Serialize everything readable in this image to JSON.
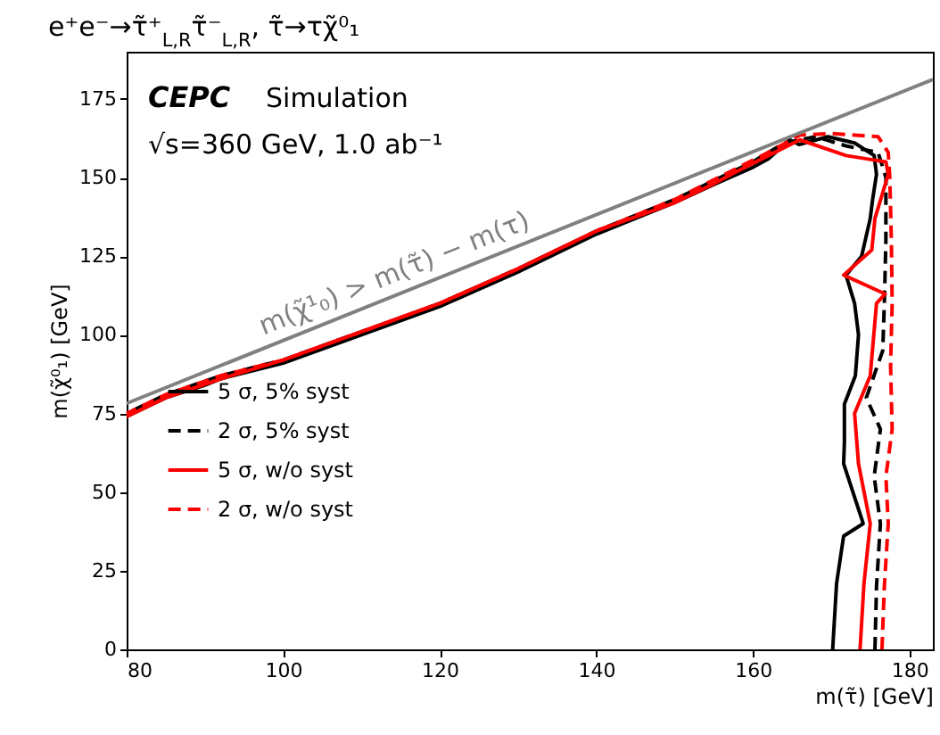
{
  "chart_data": {
    "type": "line",
    "title": "e⁺e⁻→τ̃⁺$_{L,R}$τ̃⁻$_{L,R}$, τ̃→τχ̃⁰₁",
    "xlabel": "m(τ̃) [GeV]",
    "ylabel": "m(χ̃⁰₁) [GeV]",
    "annotations": [
      "CEPC",
      "Simulation",
      "√s=360 GeV, 1.0 ab⁻¹",
      "m(χ̃¹₀) > m(τ̃) − m(τ)"
    ],
    "xlim": [
      80,
      183
    ],
    "ylim": [
      0,
      190
    ],
    "xticks": [
      80,
      100,
      120,
      140,
      160,
      180
    ],
    "yticks": [
      0,
      25,
      50,
      75,
      100,
      125,
      150,
      175
    ],
    "grid": false,
    "legend": "left",
    "marker": "none",
    "series": [
      {
        "name": "5 σ, 5% syst",
        "color": "#000000",
        "line_style": "solid",
        "x": [
          170.2,
          170.7,
          171.6,
          174.1,
          171.6,
          171.7,
          171.7,
          173.1,
          173.5,
          173.0,
          171.9,
          173.9,
          175.0,
          175.3,
          175.8,
          175.5,
          173.0,
          169.6,
          165.9,
          164.7,
          162.0,
          159.8,
          155.2,
          150,
          140,
          130,
          120,
          110,
          100,
          92,
          90,
          85,
          80
        ],
        "values": [
          0,
          21,
          36,
          40,
          59,
          66,
          78,
          87,
          100,
          110,
          119,
          125,
          137,
          143,
          151,
          157,
          161,
          163,
          160.5,
          162,
          156,
          153,
          148,
          142,
          132,
          120,
          109,
          100,
          91,
          86,
          84,
          80,
          74
        ]
      },
      {
        "name": "2 σ, 5% syst",
        "color": "#000000",
        "line_style": "dashed",
        "x": [
          175.6,
          175.8,
          176.3,
          175.5,
          176.3,
          174.5,
          176.6,
          176.8,
          177,
          177,
          176,
          172,
          168,
          164,
          160,
          155,
          150,
          140,
          130,
          120,
          110,
          100,
          92,
          85,
          80
        ],
        "values": [
          0,
          20,
          40,
          55,
          70,
          80,
          95,
          110,
          130,
          150,
          158,
          160,
          163,
          161,
          155,
          149,
          143,
          133,
          121,
          110,
          101,
          92,
          87,
          81,
          75
        ]
      },
      {
        "name": "5 σ, w/o syst",
        "color": "#ff0000",
        "line_style": "solid",
        "x": [
          173.7,
          174.2,
          175,
          173.5,
          173,
          175,
          175.8,
          176.9,
          171.6,
          175.2,
          175.6,
          177.3,
          177,
          174.4,
          171.9,
          166,
          162,
          158,
          155,
          150,
          140,
          130,
          120,
          110,
          100,
          92,
          85,
          80
        ],
        "values": [
          0,
          21,
          40,
          59,
          75,
          87,
          110,
          113,
          119,
          127,
          137,
          151,
          155,
          156,
          157,
          162,
          157,
          152,
          148,
          142,
          133,
          121,
          110,
          101,
          92,
          86,
          80,
          74
        ]
      },
      {
        "name": "2 σ, w/o syst",
        "color": "#ff0000",
        "line_style": "dashed",
        "x": [
          176.5,
          176.8,
          177.3,
          177.0,
          177.8,
          177.6,
          177.8,
          177.7,
          177.5,
          177.3,
          176,
          170,
          166,
          162,
          158,
          150,
          140,
          130,
          120,
          110,
          100,
          92,
          85,
          80
        ],
        "values": [
          0,
          20,
          40,
          55,
          70,
          90,
          110,
          130,
          150,
          158,
          163,
          164,
          163.5,
          158,
          153,
          143,
          133,
          121,
          110,
          101,
          92,
          87,
          81,
          75
        ]
      },
      {
        "color": "#808080",
        "line_style": "solid",
        "x": [
          80,
          183
        ],
        "values": [
          78.2,
          181.2
        ]
      }
    ]
  }
}
